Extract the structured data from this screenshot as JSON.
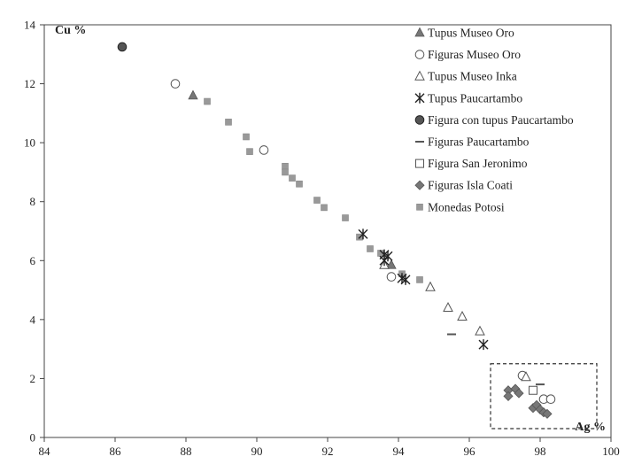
{
  "chart_data": {
    "type": "scatter",
    "title": "",
    "xlabel": "Ag %",
    "ylabel": "Cu %",
    "xlim": [
      84,
      100
    ],
    "ylim": [
      0,
      14
    ],
    "xticks": [
      84,
      86,
      88,
      90,
      92,
      94,
      96,
      98,
      100
    ],
    "yticks": [
      0,
      2,
      4,
      6,
      8,
      10,
      12,
      14
    ],
    "grid": false,
    "legend_position": "top-right",
    "highlight_box": {
      "x": [
        96.6,
        99.6
      ],
      "y": [
        0.3,
        2.5
      ]
    },
    "series": [
      {
        "name": "Tupus Museo Oro",
        "marker": "triangle-filled",
        "points": [
          [
            88.2,
            11.6
          ],
          [
            93.8,
            5.85
          ]
        ]
      },
      {
        "name": "Figuras Museo Oro",
        "marker": "circle-open",
        "points": [
          [
            87.7,
            12.0
          ],
          [
            90.2,
            9.75
          ],
          [
            93.8,
            5.45
          ],
          [
            97.5,
            2.1
          ],
          [
            98.1,
            1.3
          ],
          [
            98.3,
            1.3
          ]
        ]
      },
      {
        "name": "Tupus Museo Inka",
        "marker": "triangle-open",
        "points": [
          [
            93.6,
            5.85
          ],
          [
            94.9,
            5.1
          ],
          [
            95.4,
            4.4
          ],
          [
            95.8,
            4.1
          ],
          [
            96.3,
            3.6
          ],
          [
            97.6,
            2.05
          ]
        ]
      },
      {
        "name": "Tupus Paucartambo",
        "marker": "asterisk",
        "points": [
          [
            93.0,
            6.9
          ],
          [
            93.6,
            6.2
          ],
          [
            93.7,
            6.15
          ],
          [
            93.6,
            6.0
          ],
          [
            94.1,
            5.4
          ],
          [
            94.2,
            5.35
          ],
          [
            96.4,
            3.15
          ]
        ]
      },
      {
        "name": "Figura con tupus Paucartambo",
        "marker": "circle-filled",
        "points": [
          [
            86.2,
            13.25
          ]
        ]
      },
      {
        "name": "Figuras Paucartambo",
        "marker": "dash",
        "points": [
          [
            95.5,
            3.5
          ],
          [
            98.0,
            1.8
          ]
        ]
      },
      {
        "name": "Figura San Jeronimo",
        "marker": "square-open",
        "points": [
          [
            97.8,
            1.6
          ]
        ]
      },
      {
        "name": "Figuras Isla Coati",
        "marker": "diamond-filled",
        "points": [
          [
            97.1,
            1.6
          ],
          [
            97.1,
            1.4
          ],
          [
            97.3,
            1.65
          ],
          [
            97.4,
            1.5
          ],
          [
            97.8,
            1.0
          ],
          [
            97.9,
            1.1
          ],
          [
            98.0,
            0.95
          ],
          [
            98.1,
            0.85
          ],
          [
            98.2,
            0.8
          ]
        ]
      },
      {
        "name": "Monedas Potosi",
        "marker": "square-filled",
        "points": [
          [
            88.6,
            11.4
          ],
          [
            89.2,
            10.7
          ],
          [
            89.7,
            10.2
          ],
          [
            89.8,
            9.7
          ],
          [
            90.8,
            9.2
          ],
          [
            90.8,
            9.0
          ],
          [
            91.0,
            8.8
          ],
          [
            91.2,
            8.6
          ],
          [
            91.7,
            8.05
          ],
          [
            91.9,
            7.8
          ],
          [
            92.5,
            7.45
          ],
          [
            92.9,
            6.8
          ],
          [
            93.2,
            6.4
          ],
          [
            93.5,
            6.25
          ],
          [
            94.1,
            5.55
          ],
          [
            94.6,
            5.35
          ]
        ]
      }
    ]
  }
}
